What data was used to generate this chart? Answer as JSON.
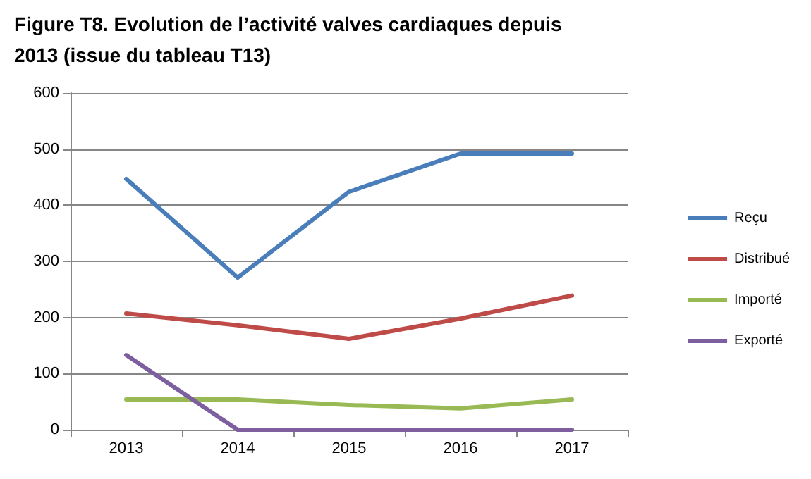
{
  "chart_data": {
    "type": "line",
    "title": "Figure T8. Evolution de l’activité valves cardiaques depuis 2013 (issue du tableau T13)",
    "categories": [
      "2013",
      "2014",
      "2015",
      "2016",
      "2017"
    ],
    "series": [
      {
        "name": "Reçu",
        "color": "#4a7ebb",
        "values": [
          447,
          271,
          424,
          492,
          492
        ]
      },
      {
        "name": "Distribué",
        "color": "#be4b48",
        "values": [
          207,
          186,
          162,
          198,
          239
        ]
      },
      {
        "name": "Importé",
        "color": "#98b954",
        "values": [
          54,
          54,
          44,
          38,
          54
        ]
      },
      {
        "name": "Exporté",
        "color": "#7d5fa0",
        "values": [
          133,
          0,
          0,
          0,
          0
        ]
      }
    ],
    "ylim": [
      0,
      600
    ],
    "yticks": [
      0,
      100,
      200,
      300,
      400,
      500,
      600
    ],
    "grid": "y",
    "legend": "right",
    "marker": "none",
    "line_style": "solid"
  }
}
